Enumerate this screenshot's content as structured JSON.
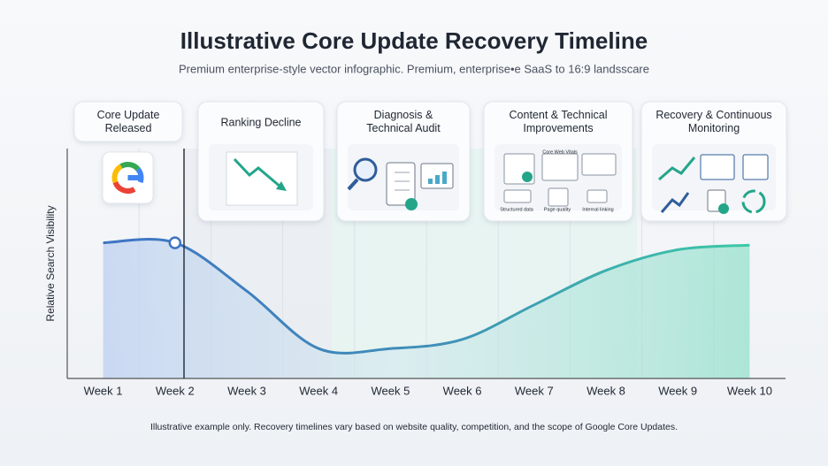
{
  "chart_data": {
    "type": "line",
    "title": "Illustrative Core Update Recovery Timeline",
    "subtitle": "Premium enterprise-style vector infographic. Premium, enterprise•e SaaS to 16:9 landsscare",
    "y_label": "Relative Search Visibility",
    "categories": [
      "Week 1",
      "Week 2",
      "Week 3",
      "Week 4",
      "Week 5",
      "Week 6",
      "Week 7",
      "Week 8",
      "Week 9",
      "Week 10"
    ],
    "series": [
      {
        "name": "Relative Search Visibility",
        "color": "#3f74c4",
        "values": [
          59,
          59,
          38,
          13,
          13,
          17,
          32,
          47,
          56,
          58
        ]
      }
    ],
    "ylim": [
      0,
      100
    ],
    "phases": [
      {
        "title_lines": [
          "Core Update",
          "Released"
        ]
      },
      {
        "title_lines": [
          "Ranking Decline"
        ]
      },
      {
        "title_lines": [
          "Diagnosis &",
          "Technical Audit"
        ]
      },
      {
        "title_lines": [
          "Content & Technical",
          "Improvements"
        ],
        "icon_labels": [
          "Core Web Vitals",
          "Structured data",
          "Page quality",
          "Internal linking"
        ]
      },
      {
        "title_lines": [
          "Recovery & Continuous",
          "Monitoring"
        ]
      }
    ],
    "footnote": "Illustrative example only. Recovery timelines vary based on website quality, competition, and the scope of Google Core Updates."
  }
}
